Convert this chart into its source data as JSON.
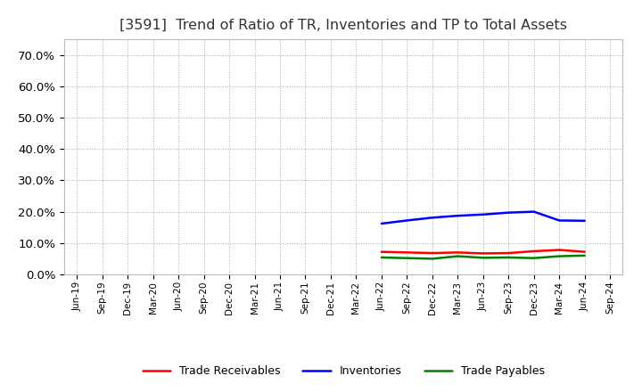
{
  "title": "[3591]  Trend of Ratio of TR, Inventories and TP to Total Assets",
  "title_fontsize": 11.5,
  "title_color": "#333333",
  "background_color": "#ffffff",
  "plot_bg_color": "#ffffff",
  "x_labels": [
    "Jun-19",
    "Sep-19",
    "Dec-19",
    "Mar-20",
    "Jun-20",
    "Sep-20",
    "Dec-20",
    "Mar-21",
    "Jun-21",
    "Sep-21",
    "Dec-21",
    "Mar-22",
    "Jun-22",
    "Sep-22",
    "Dec-22",
    "Mar-23",
    "Jun-23",
    "Sep-23",
    "Dec-23",
    "Mar-24",
    "Jun-24",
    "Sep-24"
  ],
  "trade_receivables": [
    null,
    null,
    null,
    null,
    null,
    null,
    null,
    null,
    null,
    null,
    null,
    null,
    0.072,
    0.07,
    0.068,
    0.07,
    0.067,
    0.068,
    0.074,
    0.078,
    0.072,
    null
  ],
  "inventories": [
    null,
    null,
    null,
    null,
    null,
    null,
    null,
    null,
    null,
    null,
    null,
    null,
    0.162,
    0.172,
    0.181,
    0.187,
    0.191,
    0.197,
    0.2,
    0.172,
    0.171,
    null
  ],
  "trade_payables": [
    null,
    null,
    null,
    null,
    null,
    null,
    null,
    null,
    null,
    null,
    null,
    null,
    0.054,
    0.052,
    0.05,
    0.058,
    0.053,
    0.054,
    0.052,
    0.058,
    0.06,
    null
  ],
  "tr_color": "#ff0000",
  "inv_color": "#0000ff",
  "tp_color": "#008000",
  "legend_labels": [
    "Trade Receivables",
    "Inventories",
    "Trade Payables"
  ],
  "ylim": [
    0.0,
    0.75
  ],
  "yticks": [
    0.0,
    0.1,
    0.2,
    0.3,
    0.4,
    0.5,
    0.6,
    0.7
  ],
  "grid_color": "#aaaaaa",
  "line_width": 1.8
}
